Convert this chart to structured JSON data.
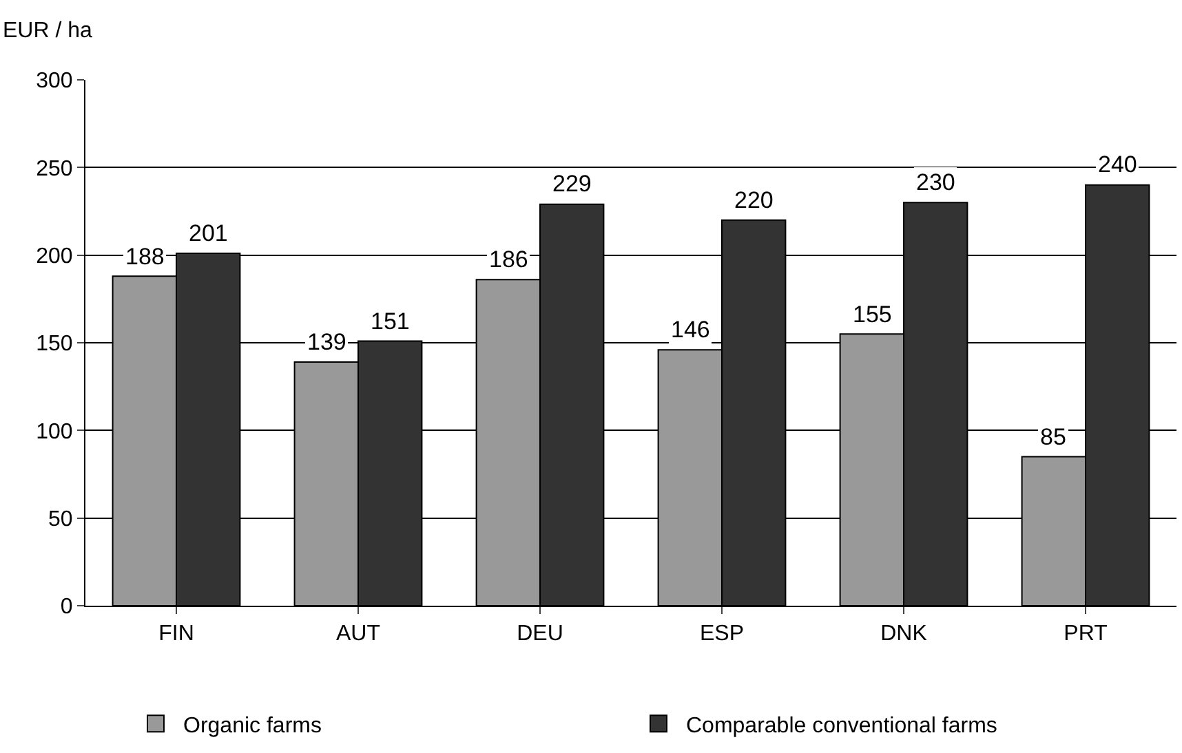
{
  "chart_data": {
    "type": "bar",
    "ylabel": "EUR / ha",
    "categories": [
      "FIN",
      "AUT",
      "DEU",
      "ESP",
      "DNK",
      "PRT"
    ],
    "series": [
      {
        "name": "Organic farms",
        "color": "#999999",
        "values": [
          188,
          139,
          186,
          146,
          155,
          85
        ]
      },
      {
        "name": "Comparable conventional farms",
        "color": "#333333",
        "values": [
          201,
          151,
          229,
          220,
          230,
          240
        ]
      }
    ],
    "ylim": [
      0,
      300
    ],
    "yticks": [
      0,
      50,
      100,
      150,
      200,
      250,
      300
    ],
    "grid": "y",
    "legend": "bottom",
    "data_labels": true
  }
}
